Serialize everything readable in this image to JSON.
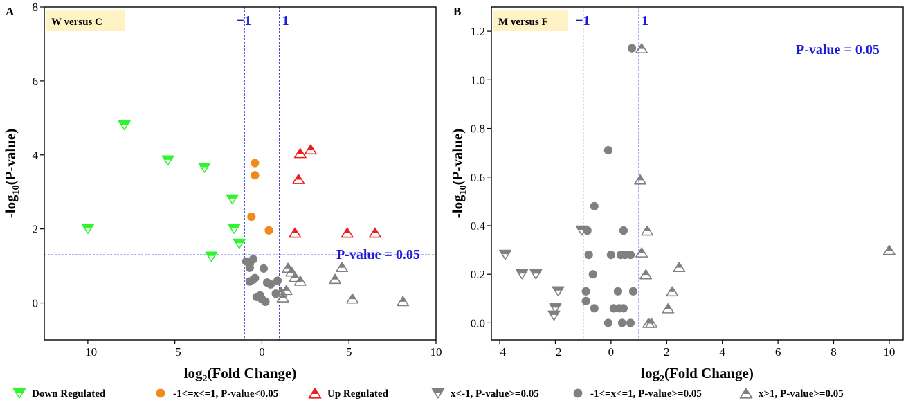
{
  "figure": {
    "legend": [
      {
        "key": "down",
        "label": "Down Regulated",
        "marker": "tri-down-half",
        "color": "#2ef52e"
      },
      {
        "key": "mid_sig",
        "label": "-1<=x<=1, P-value<0.05",
        "marker": "circle",
        "color": "#f08a1c"
      },
      {
        "key": "up",
        "label": "Up Regulated",
        "marker": "tri-up-half",
        "color": "#ee1c1c"
      },
      {
        "key": "down_ns",
        "label": "x<-1, P-value>=0.05",
        "marker": "tri-down-half",
        "color": "#808080"
      },
      {
        "key": "mid_ns",
        "label": "-1<=x<=1, P-value>=0.05",
        "marker": "circle",
        "color": "#808080"
      },
      {
        "key": "up_ns",
        "label": "x>1, P-value>=0.05",
        "marker": "tri-up-half",
        "color": "#808080"
      }
    ],
    "colors": {
      "axis": "#000000",
      "ref_line": "#3333dd",
      "ref_text": "#1a1ad8",
      "label_box": "#fff2c4"
    }
  },
  "chart_data": [
    {
      "panel": "A",
      "type": "scatter",
      "title": "W versus C",
      "xlabel_main": "log",
      "xlabel_sub": "2",
      "xlabel_tail": "(Fold Change)",
      "ylabel_main": "-log",
      "ylabel_sub": "10",
      "ylabel_tail": "(P-value)",
      "xlim": [
        -12.5,
        10
      ],
      "ylim": [
        -1,
        8
      ],
      "xticks": [
        -10,
        -5,
        0,
        5,
        10
      ],
      "yticks": [
        0,
        2,
        4,
        6,
        8
      ],
      "xtick_labels": [
        "−10",
        "−5",
        "0",
        "5",
        "10"
      ],
      "ytick_labels": [
        "0",
        "2",
        "4",
        "6",
        "8"
      ],
      "vlines": [
        {
          "x": -1,
          "label": "−1"
        },
        {
          "x": 1,
          "label": "1"
        }
      ],
      "hline": {
        "y": 1.3,
        "label": "P-value = 0.05"
      },
      "series": [
        {
          "key": "down",
          "points": [
            [
              -10,
              2.0
            ],
            [
              -7.9,
              4.8
            ],
            [
              -5.4,
              3.85
            ],
            [
              -3.3,
              3.65
            ],
            [
              -2.9,
              1.25
            ],
            [
              -1.7,
              2.8
            ],
            [
              -1.6,
              2.0
            ],
            [
              -1.3,
              1.6
            ]
          ]
        },
        {
          "key": "mid_sig",
          "points": [
            [
              -0.4,
              3.78
            ],
            [
              -0.4,
              3.45
            ],
            [
              -0.6,
              2.33
            ],
            [
              0.4,
              1.96
            ]
          ]
        },
        {
          "key": "up",
          "points": [
            [
              2.8,
              4.15
            ],
            [
              2.2,
              4.05
            ],
            [
              2.1,
              3.35
            ],
            [
              1.9,
              1.9
            ],
            [
              4.9,
              1.9
            ],
            [
              6.5,
              1.9
            ]
          ]
        },
        {
          "key": "mid_ns",
          "points": [
            [
              -0.9,
              1.12
            ],
            [
              -0.7,
              1.05
            ],
            [
              -0.5,
              1.18
            ],
            [
              -0.7,
              0.95
            ],
            [
              0.1,
              0.93
            ],
            [
              -0.7,
              0.58
            ],
            [
              -0.5,
              0.63
            ],
            [
              -0.4,
              0.67
            ],
            [
              0.3,
              0.55
            ],
            [
              0.5,
              0.5
            ],
            [
              0.9,
              0.6
            ],
            [
              -0.3,
              0.16
            ],
            [
              -0.1,
              0.2
            ],
            [
              0.0,
              0.1
            ],
            [
              0.2,
              0.03
            ],
            [
              0.8,
              0.25
            ]
          ]
        },
        {
          "key": "up_ns",
          "points": [
            [
              1.5,
              0.95
            ],
            [
              1.7,
              0.85
            ],
            [
              1.9,
              0.7
            ],
            [
              2.2,
              0.6
            ],
            [
              1.4,
              0.35
            ],
            [
              1.1,
              0.3
            ],
            [
              1.2,
              0.15
            ],
            [
              4.2,
              0.65
            ],
            [
              4.6,
              0.97
            ],
            [
              5.2,
              0.12
            ],
            [
              8.1,
              0.05
            ]
          ]
        }
      ]
    },
    {
      "panel": "B",
      "type": "scatter",
      "title": "M versus F",
      "xlabel_main": "log",
      "xlabel_sub": "2",
      "xlabel_tail": "(Fold Change)",
      "ylabel_main": "-log",
      "ylabel_sub": "10",
      "ylabel_tail": "(P-value)",
      "xlim": [
        -4.3,
        10.5
      ],
      "ylim": [
        -0.07,
        1.3
      ],
      "xticks": [
        -4,
        -2,
        0,
        2,
        4,
        6,
        8,
        10
      ],
      "yticks": [
        0.0,
        0.2,
        0.4,
        0.6,
        0.8,
        1.0,
        1.2
      ],
      "xtick_labels": [
        "−4",
        "−2",
        "0",
        "2",
        "4",
        "6",
        "8",
        "10"
      ],
      "ytick_labels": [
        "0.0",
        "0.2",
        "0.4",
        "0.6",
        "0.8",
        "1.0",
        "1.2"
      ],
      "vlines": [
        {
          "x": -1,
          "label": "−1"
        },
        {
          "x": 1,
          "label": "1"
        }
      ],
      "hline": {
        "y": 1.3,
        "label": "P-value = 0.05"
      },
      "series": [
        {
          "key": "down_ns",
          "points": [
            [
              -3.8,
              0.28
            ],
            [
              -3.2,
              0.2
            ],
            [
              -2.7,
              0.2
            ],
            [
              -1.9,
              0.13
            ],
            [
              -2.0,
              0.06
            ],
            [
              -2.05,
              0.03
            ],
            [
              -1.05,
              0.38
            ]
          ]
        },
        {
          "key": "mid_ns",
          "points": [
            [
              0.75,
              1.13
            ],
            [
              -0.1,
              0.71
            ],
            [
              -0.6,
              0.48
            ],
            [
              -0.85,
              0.38
            ],
            [
              0.45,
              0.38
            ],
            [
              -0.8,
              0.28
            ],
            [
              0.0,
              0.28
            ],
            [
              0.35,
              0.28
            ],
            [
              0.5,
              0.28
            ],
            [
              0.7,
              0.28
            ],
            [
              -0.65,
              0.2
            ],
            [
              -0.9,
              0.13
            ],
            [
              0.25,
              0.13
            ],
            [
              0.8,
              0.13
            ],
            [
              -0.9,
              0.09
            ],
            [
              -0.6,
              0.06
            ],
            [
              0.1,
              0.06
            ],
            [
              0.3,
              0.06
            ],
            [
              0.45,
              0.06
            ],
            [
              -0.1,
              0.0
            ],
            [
              0.4,
              0.0
            ],
            [
              0.7,
              0.0
            ]
          ]
        },
        {
          "key": "up_ns",
          "points": [
            [
              1.1,
              1.13
            ],
            [
              1.05,
              0.59
            ],
            [
              1.3,
              0.38
            ],
            [
              1.1,
              0.29
            ],
            [
              1.25,
              0.2
            ],
            [
              2.45,
              0.23
            ],
            [
              2.2,
              0.13
            ],
            [
              2.05,
              0.06
            ],
            [
              1.35,
              0.0
            ],
            [
              1.45,
              0.0
            ],
            [
              10.0,
              0.3
            ]
          ]
        }
      ]
    }
  ]
}
